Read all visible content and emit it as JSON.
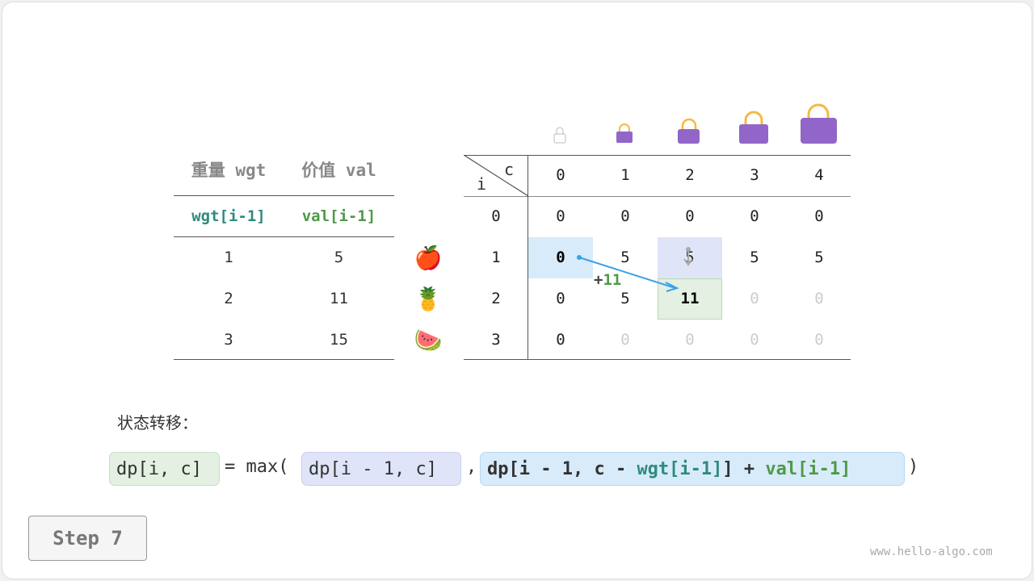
{
  "items_table": {
    "headers": [
      "重量 wgt",
      "价值 val"
    ],
    "subheaders": [
      "wgt[i-1]",
      "val[i-1]"
    ],
    "rows": [
      [
        "1",
        "5"
      ],
      [
        "2",
        "11"
      ],
      [
        "3",
        "15"
      ]
    ],
    "fruit_icons": [
      "apple-icon",
      "pineapple-icon",
      "watermelon-icon"
    ],
    "fruit_glyphs": [
      "🍎",
      "🍍",
      "🍉"
    ]
  },
  "dp_table": {
    "corner_c": "c",
    "corner_i": "i",
    "col_headers": [
      "0",
      "1",
      "2",
      "3",
      "4"
    ],
    "row_headers": [
      "0",
      "1",
      "2",
      "3"
    ],
    "rows": [
      [
        "0",
        "0",
        "0",
        "0",
        "0"
      ],
      [
        "0",
        "5",
        "5",
        "5",
        "5"
      ],
      [
        "0",
        "5",
        "11",
        "0",
        "0"
      ],
      [
        "0",
        "0",
        "0",
        "0",
        "0"
      ]
    ],
    "filled": [
      [
        1,
        1,
        1,
        1,
        1
      ],
      [
        1,
        1,
        1,
        1,
        1
      ],
      [
        1,
        1,
        1,
        0,
        0
      ],
      [
        1,
        0,
        0,
        0,
        0
      ]
    ],
    "bag_icons": [
      "empty-bag-icon",
      "bag-icon",
      "bag-icon",
      "bag-icon",
      "bag-icon"
    ],
    "annotation": {
      "plus": "+",
      "value": "11"
    },
    "colors": {
      "source_blue": "#d8ebfa",
      "source_purple": "#e0e4f8",
      "target_green": "#e3f0e2",
      "arrow": "#3aa0e8"
    }
  },
  "transition_label": "状态转移：",
  "formula": {
    "lhs": "dp[i, c]",
    "eq": "= max(",
    "opt1": "dp[i - 1, c]",
    "comma": ",",
    "opt2_a": "dp[i - 1, c - ",
    "opt2_wgt": "wgt[i-1]",
    "opt2_b": "] + ",
    "opt2_val": "val[i-1]",
    "close": ")"
  },
  "step_button": "Step 7",
  "watermark": "www.hello-algo.com"
}
